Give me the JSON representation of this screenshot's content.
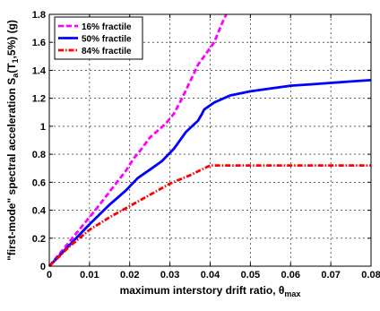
{
  "chart_data": {
    "type": "line",
    "title": "",
    "xlabel": "maximum interstory drift ratio, θ",
    "xlabel_sub": "max",
    "ylabel": "\"first-mode\" spectral acceleration S",
    "ylabel_sub1": "a",
    "ylabel_mid": "(T",
    "ylabel_sub2": "1",
    "ylabel_end": ",5%) (g)",
    "xlim": [
      0,
      0.08
    ],
    "ylim": [
      0,
      1.8
    ],
    "xticks": [
      0,
      0.01,
      0.02,
      0.03,
      0.04,
      0.05,
      0.06,
      0.07,
      0.08
    ],
    "xtick_labels": [
      "0",
      "0.01",
      "0.02",
      "0.03",
      "0.04",
      "0.05",
      "0.06",
      "0.07",
      "0.08"
    ],
    "yticks": [
      0,
      0.2,
      0.4,
      0.6,
      0.8,
      1.0,
      1.2,
      1.4,
      1.6,
      1.8
    ],
    "ytick_labels": [
      "0",
      "0.2",
      "0.4",
      "0.6",
      "0.8",
      "1",
      "1.2",
      "1.4",
      "1.6",
      "1.8"
    ],
    "grid": true,
    "legend_position": "top-left",
    "series": [
      {
        "name": "16% fractile",
        "color": "#ff00ff",
        "dash": "dashed",
        "x": [
          0,
          0.004,
          0.008,
          0.012,
          0.016,
          0.019,
          0.021,
          0.023,
          0.025,
          0.027,
          0.029,
          0.031,
          0.033,
          0.035,
          0.037,
          0.039,
          0.041,
          0.043,
          0.044
        ],
        "y": [
          0,
          0.14,
          0.28,
          0.42,
          0.57,
          0.68,
          0.77,
          0.84,
          0.92,
          0.97,
          1.02,
          1.09,
          1.2,
          1.32,
          1.44,
          1.52,
          1.6,
          1.74,
          1.8
        ]
      },
      {
        "name": "50% fractile",
        "color": "#0000ff",
        "dash": "solid",
        "x": [
          0,
          0.005,
          0.01,
          0.015,
          0.019,
          0.022,
          0.025,
          0.028,
          0.031,
          0.034,
          0.037,
          0.038,
          0.0385,
          0.041,
          0.045,
          0.05,
          0.055,
          0.06,
          0.065,
          0.07,
          0.075,
          0.08
        ],
        "y": [
          0,
          0.15,
          0.3,
          0.44,
          0.54,
          0.63,
          0.69,
          0.75,
          0.84,
          0.96,
          1.04,
          1.09,
          1.12,
          1.17,
          1.22,
          1.25,
          1.27,
          1.29,
          1.3,
          1.31,
          1.32,
          1.33
        ]
      },
      {
        "name": "84% fractile",
        "color": "#ff0000",
        "dash": "dashdot",
        "x": [
          0,
          0.005,
          0.01,
          0.015,
          0.02,
          0.025,
          0.03,
          0.035,
          0.04,
          0.045,
          0.05,
          0.06,
          0.07,
          0.08
        ],
        "y": [
          0,
          0.14,
          0.26,
          0.35,
          0.43,
          0.51,
          0.59,
          0.65,
          0.72,
          0.72,
          0.72,
          0.72,
          0.72,
          0.72
        ]
      }
    ]
  }
}
